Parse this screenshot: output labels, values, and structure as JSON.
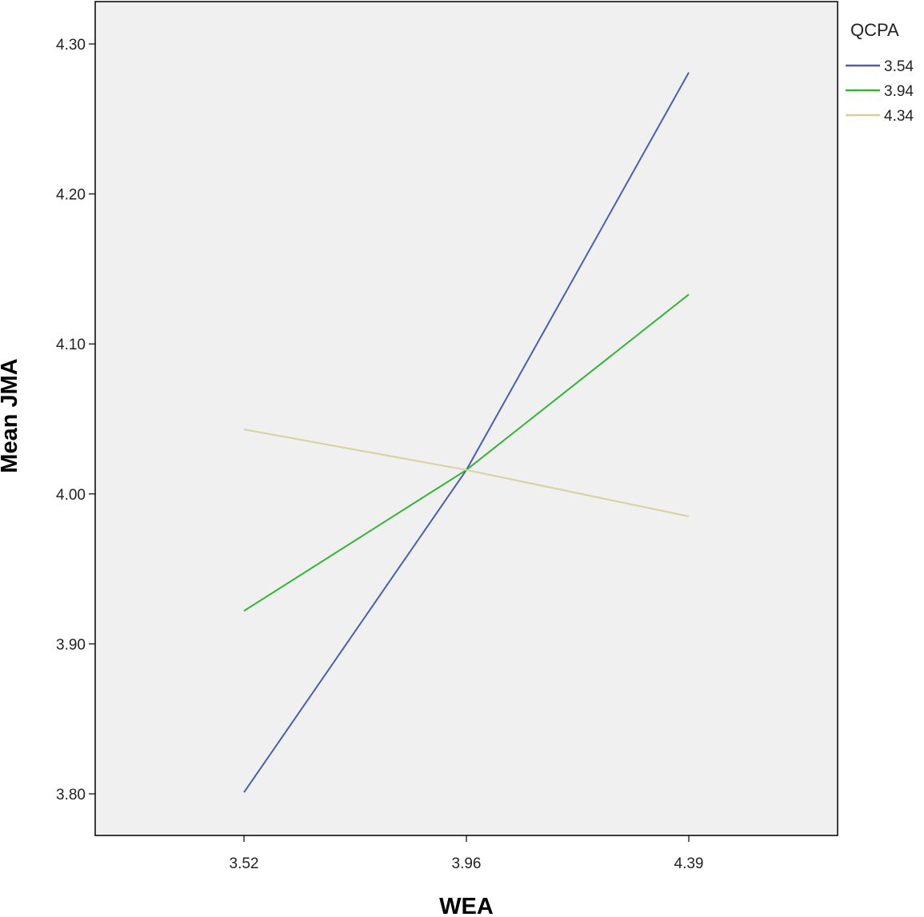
{
  "chart_data": {
    "type": "line",
    "xlabel": "WEA",
    "ylabel": "Mean JMA",
    "categories": [
      "3.52",
      "3.96",
      "4.39"
    ],
    "ylim": [
      3.75,
      4.32
    ],
    "yticks": [
      "3.80",
      "3.90",
      "4.00",
      "4.10",
      "4.20",
      "4.30"
    ],
    "grid": false,
    "legend": {
      "title": "QCPA",
      "placement": "right-top"
    },
    "series": [
      {
        "name": "3.54",
        "color": "#4a5fad",
        "values": [
          3.801,
          4.016,
          4.281
        ]
      },
      {
        "name": "3.94",
        "color": "#2fb82f",
        "values": [
          3.922,
          4.016,
          4.133
        ]
      },
      {
        "name": "4.34",
        "color": "#d8d19c",
        "values": [
          4.043,
          4.016,
          3.985
        ]
      }
    ]
  }
}
